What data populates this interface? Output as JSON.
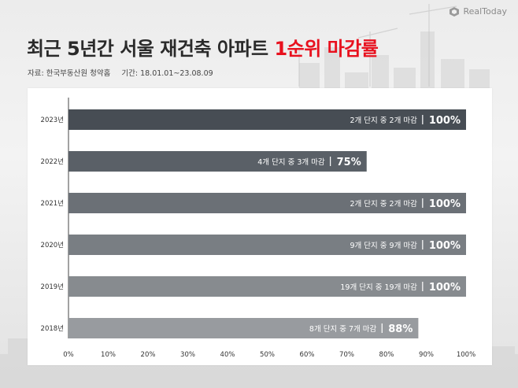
{
  "brand": {
    "name": "RealToday"
  },
  "header": {
    "title_main": "최근 5년간 서울 재건축 아파트 ",
    "title_highlight": "1순위 마감률",
    "source": "자료: 한국부동산원 청약홈",
    "period": "기간: 18.01.01~23.08.09"
  },
  "colors": {
    "highlight": "#e8111e",
    "bar_2023": "#474d54",
    "bar_2022": "#5a6067",
    "bar_2021": "#6b7076",
    "bar_2020": "#797e83",
    "bar_2019": "#878b8f",
    "bar_2018": "#989b9f"
  },
  "chart_data": {
    "type": "bar",
    "orientation": "horizontal",
    "categories": [
      "2023년",
      "2022년",
      "2021년",
      "2020년",
      "2019년",
      "2018년"
    ],
    "values": [
      100,
      75,
      100,
      100,
      100,
      88
    ],
    "bar_labels": [
      "2개 단지 중 2개 마감",
      "4개 단지 중 3개 마감",
      "2개 단지 중 2개 마감",
      "9개 단지 중 9개 마감",
      "19개 단지 중 19개 마감",
      "8개 단지 중 7개 마감"
    ],
    "value_labels": [
      "100%",
      "75%",
      "100%",
      "100%",
      "100%",
      "88%"
    ],
    "xlim": [
      0,
      100
    ],
    "xticks": [
      "0%",
      "10%",
      "20%",
      "30%",
      "40%",
      "50%",
      "60%",
      "70%",
      "80%",
      "90%",
      "100%"
    ],
    "grid": false
  }
}
